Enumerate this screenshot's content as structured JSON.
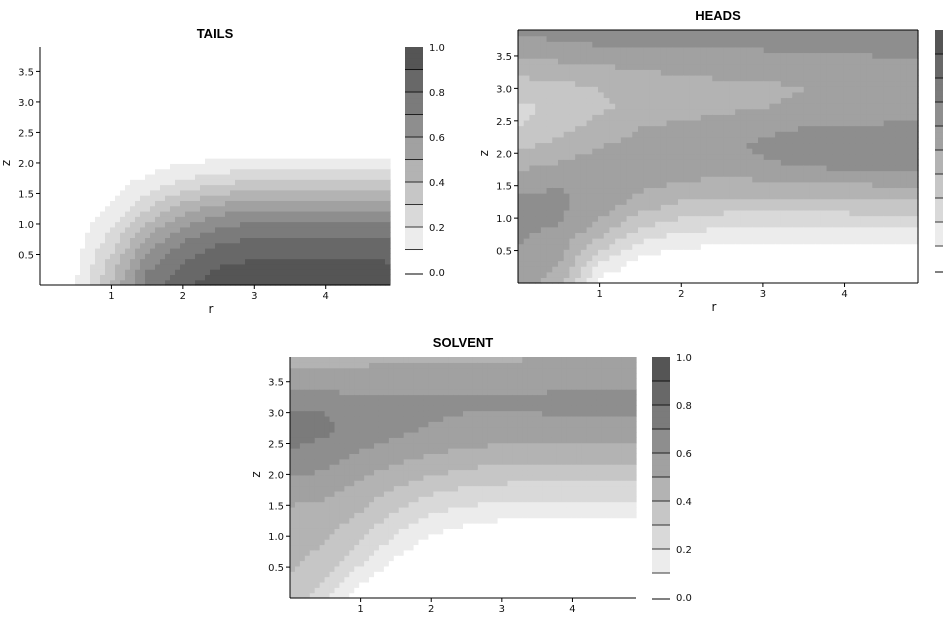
{
  "chart_data": [
    {
      "type": "heatmap",
      "title": "TAILS",
      "xlabel": "r",
      "ylabel": "z",
      "x_ticks": [
        1,
        2,
        3,
        4
      ],
      "y_ticks": [
        "0.5",
        "1.0",
        "1.5",
        "2.0",
        "2.5",
        "3.0",
        "3.5"
      ],
      "xlim": [
        0,
        4.9
      ],
      "ylim": [
        0,
        3.9
      ],
      "colorbar": {
        "ticks": [
          "0.0",
          "0.2",
          "0.4",
          "0.6",
          "0.8",
          "1.0"
        ],
        "range": [
          0,
          1
        ],
        "levels": 10
      },
      "colormap": [
        "#ffffff",
        "#555555"
      ],
      "grid": false,
      "x_nodes": [
        0,
        0.5,
        1.0,
        1.5,
        2.0,
        2.5,
        3.0,
        3.5,
        4.0,
        4.5,
        4.9
      ],
      "y_nodes": [
        0,
        0.3,
        0.6,
        0.9,
        1.2,
        1.5,
        1.8,
        2.1,
        2.4,
        2.7,
        3.0,
        3.3,
        3.6,
        3.9
      ],
      "values": [
        [
          0.05,
          0.1,
          0.4,
          0.75,
          0.88,
          0.95,
          0.97,
          0.98,
          0.98,
          0.97,
          0.96
        ],
        [
          0.04,
          0.08,
          0.35,
          0.68,
          0.82,
          0.9,
          0.93,
          0.94,
          0.94,
          0.93,
          0.92
        ],
        [
          0.03,
          0.06,
          0.28,
          0.58,
          0.74,
          0.82,
          0.86,
          0.87,
          0.87,
          0.86,
          0.85
        ],
        [
          0.02,
          0.05,
          0.2,
          0.46,
          0.63,
          0.72,
          0.76,
          0.77,
          0.77,
          0.76,
          0.75
        ],
        [
          0.02,
          0.04,
          0.12,
          0.32,
          0.48,
          0.58,
          0.62,
          0.63,
          0.63,
          0.62,
          0.61
        ],
        [
          0.01,
          0.03,
          0.07,
          0.2,
          0.32,
          0.4,
          0.44,
          0.45,
          0.45,
          0.44,
          0.43
        ],
        [
          0.0,
          0.02,
          0.04,
          0.1,
          0.17,
          0.22,
          0.25,
          0.26,
          0.26,
          0.25,
          0.25
        ],
        [
          0.0,
          0.01,
          0.02,
          0.04,
          0.06,
          0.08,
          0.09,
          0.1,
          0.1,
          0.09,
          0.09
        ],
        [
          0.0,
          0.0,
          0.01,
          0.01,
          0.01,
          0.02,
          0.02,
          0.02,
          0.02,
          0.02,
          0.02
        ],
        [
          0.0,
          0.0,
          0.0,
          0.0,
          0.0,
          0.0,
          0.0,
          0.0,
          0.0,
          0.0,
          0.0
        ],
        [
          0.0,
          0.0,
          0.0,
          0.0,
          0.0,
          0.0,
          0.0,
          0.0,
          0.0,
          0.0,
          0.0
        ],
        [
          0.0,
          0.0,
          0.0,
          0.0,
          0.0,
          0.0,
          0.0,
          0.0,
          0.0,
          0.0,
          0.0
        ],
        [
          0.0,
          0.0,
          0.0,
          0.0,
          0.0,
          0.0,
          0.0,
          0.0,
          0.0,
          0.0,
          0.0
        ],
        [
          0.0,
          0.0,
          0.0,
          0.0,
          0.0,
          0.0,
          0.0,
          0.0,
          0.0,
          0.0,
          0.0
        ]
      ]
    },
    {
      "type": "heatmap",
      "title": "HEADS",
      "xlabel": "r",
      "ylabel": "z",
      "x_ticks": [
        1,
        2,
        3,
        4
      ],
      "y_ticks": [
        "0.5",
        "1.0",
        "1.5",
        "2.0",
        "2.5",
        "3.0",
        "3.5"
      ],
      "xlim": [
        0,
        4.9
      ],
      "ylim": [
        0,
        3.9
      ],
      "colorbar": {
        "ticks": [],
        "range": [
          0,
          1
        ],
        "levels": 10
      },
      "colormap": [
        "#ffffff",
        "#555555"
      ],
      "grid": false,
      "x_nodes": [
        0,
        0.5,
        1.0,
        1.5,
        2.0,
        2.5,
        3.0,
        3.5,
        4.0,
        4.5,
        4.9
      ],
      "y_nodes": [
        0,
        0.3,
        0.6,
        0.9,
        1.2,
        1.5,
        1.8,
        2.1,
        2.4,
        2.7,
        3.0,
        3.3,
        3.6,
        3.9
      ],
      "values": [
        [
          0.55,
          0.45,
          0.05,
          0.0,
          0.0,
          0.0,
          0.0,
          0.0,
          0.0,
          0.0,
          0.0
        ],
        [
          0.58,
          0.5,
          0.2,
          0.05,
          0.02,
          0.02,
          0.02,
          0.02,
          0.02,
          0.02,
          0.02
        ],
        [
          0.6,
          0.55,
          0.35,
          0.18,
          0.12,
          0.1,
          0.1,
          0.1,
          0.1,
          0.1,
          0.1
        ],
        [
          0.62,
          0.6,
          0.48,
          0.32,
          0.25,
          0.22,
          0.22,
          0.22,
          0.22,
          0.22,
          0.22
        ],
        [
          0.63,
          0.62,
          0.55,
          0.45,
          0.38,
          0.35,
          0.35,
          0.35,
          0.35,
          0.36,
          0.36
        ],
        [
          0.58,
          0.6,
          0.58,
          0.52,
          0.48,
          0.46,
          0.46,
          0.47,
          0.48,
          0.5,
          0.5
        ],
        [
          0.48,
          0.52,
          0.55,
          0.56,
          0.55,
          0.56,
          0.58,
          0.6,
          0.62,
          0.64,
          0.64
        ],
        [
          0.38,
          0.44,
          0.5,
          0.54,
          0.56,
          0.58,
          0.62,
          0.66,
          0.68,
          0.7,
          0.7
        ],
        [
          0.3,
          0.36,
          0.44,
          0.5,
          0.52,
          0.55,
          0.58,
          0.6,
          0.6,
          0.62,
          0.62
        ],
        [
          0.28,
          0.32,
          0.38,
          0.44,
          0.46,
          0.48,
          0.5,
          0.52,
          0.52,
          0.54,
          0.54
        ],
        [
          0.34,
          0.36,
          0.4,
          0.44,
          0.46,
          0.48,
          0.48,
          0.5,
          0.5,
          0.52,
          0.52
        ],
        [
          0.44,
          0.46,
          0.48,
          0.5,
          0.52,
          0.52,
          0.52,
          0.54,
          0.54,
          0.56,
          0.56
        ],
        [
          0.54,
          0.56,
          0.58,
          0.6,
          0.6,
          0.6,
          0.6,
          0.62,
          0.62,
          0.62,
          0.62
        ],
        [
          0.62,
          0.64,
          0.66,
          0.66,
          0.66,
          0.66,
          0.66,
          0.68,
          0.68,
          0.68,
          0.68
        ]
      ]
    },
    {
      "type": "heatmap",
      "title": "SOLVENT",
      "xlabel": "",
      "ylabel": "z",
      "x_ticks": [
        1,
        2,
        3,
        4
      ],
      "y_ticks": [
        "0.5",
        "1.0",
        "1.5",
        "2.0",
        "2.5",
        "3.0",
        "3.5"
      ],
      "xlim": [
        0,
        4.9
      ],
      "ylim": [
        0,
        3.9
      ],
      "colorbar": {
        "ticks": [
          "0.0",
          "0.2",
          "0.4",
          "0.6",
          "0.8",
          "1.0"
        ],
        "range": [
          0,
          1
        ],
        "levels": 10
      },
      "colormap": [
        "#ffffff",
        "#555555"
      ],
      "grid": false,
      "x_nodes": [
        0,
        0.5,
        1.0,
        1.5,
        2.0,
        2.5,
        3.0,
        3.5,
        4.0,
        4.5,
        4.9
      ],
      "y_nodes": [
        0,
        0.3,
        0.6,
        0.9,
        1.2,
        1.5,
        1.8,
        2.1,
        2.4,
        2.7,
        3.0,
        3.3,
        3.6,
        3.9
      ],
      "values": [
        [
          0.38,
          0.22,
          0.03,
          0.0,
          0.0,
          0.0,
          0.0,
          0.0,
          0.0,
          0.0,
          0.0
        ],
        [
          0.4,
          0.3,
          0.12,
          0.02,
          0.0,
          0.0,
          0.0,
          0.0,
          0.0,
          0.0,
          0.0
        ],
        [
          0.42,
          0.36,
          0.22,
          0.08,
          0.02,
          0.0,
          0.0,
          0.0,
          0.0,
          0.0,
          0.0
        ],
        [
          0.44,
          0.4,
          0.3,
          0.16,
          0.07,
          0.03,
          0.01,
          0.0,
          0.0,
          0.0,
          0.0
        ],
        [
          0.46,
          0.44,
          0.36,
          0.24,
          0.15,
          0.1,
          0.08,
          0.07,
          0.07,
          0.07,
          0.07
        ],
        [
          0.5,
          0.48,
          0.42,
          0.32,
          0.24,
          0.2,
          0.18,
          0.17,
          0.17,
          0.17,
          0.17
        ],
        [
          0.56,
          0.54,
          0.48,
          0.4,
          0.34,
          0.3,
          0.28,
          0.27,
          0.27,
          0.27,
          0.27
        ],
        [
          0.64,
          0.6,
          0.54,
          0.48,
          0.44,
          0.4,
          0.38,
          0.37,
          0.37,
          0.37,
          0.37
        ],
        [
          0.7,
          0.66,
          0.6,
          0.56,
          0.52,
          0.49,
          0.48,
          0.47,
          0.47,
          0.47,
          0.47
        ],
        [
          0.74,
          0.72,
          0.66,
          0.62,
          0.58,
          0.56,
          0.55,
          0.55,
          0.55,
          0.55,
          0.55
        ],
        [
          0.72,
          0.7,
          0.66,
          0.64,
          0.62,
          0.6,
          0.6,
          0.6,
          0.62,
          0.62,
          0.62
        ],
        [
          0.62,
          0.62,
          0.6,
          0.6,
          0.6,
          0.6,
          0.6,
          0.6,
          0.62,
          0.62,
          0.62
        ],
        [
          0.52,
          0.52,
          0.52,
          0.54,
          0.54,
          0.54,
          0.54,
          0.55,
          0.56,
          0.56,
          0.56
        ],
        [
          0.46,
          0.46,
          0.48,
          0.48,
          0.48,
          0.48,
          0.48,
          0.5,
          0.5,
          0.5,
          0.5
        ]
      ]
    }
  ]
}
